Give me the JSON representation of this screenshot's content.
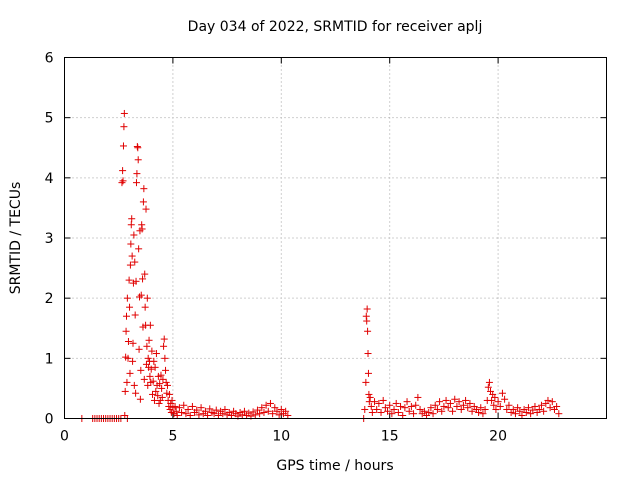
{
  "chart_data": {
    "type": "scatter",
    "title": "Day 034 of 2022, SRMTID for receiver aplj",
    "xlabel": "GPS time / hours",
    "ylabel": "SRMTID / TECUs",
    "xlim": [
      0,
      25
    ],
    "ylim": [
      0,
      6
    ],
    "xticks": [
      0,
      5,
      10,
      15,
      20
    ],
    "yticks": [
      0,
      1,
      2,
      3,
      4,
      5,
      6
    ],
    "grid": true,
    "marker": "+",
    "series_color": "#e00000",
    "series": [
      {
        "name": "SRMTID",
        "points": [
          [
            0.8,
            0.0
          ],
          [
            1.3,
            0.0
          ],
          [
            1.4,
            0.0
          ],
          [
            1.5,
            0.0
          ],
          [
            1.6,
            0.0
          ],
          [
            1.7,
            0.0
          ],
          [
            1.8,
            0.0
          ],
          [
            1.9,
            0.0
          ],
          [
            2.0,
            0.0
          ],
          [
            2.1,
            0.0
          ],
          [
            2.2,
            0.0
          ],
          [
            2.3,
            0.0
          ],
          [
            2.4,
            0.0
          ],
          [
            2.5,
            0.0
          ],
          [
            2.6,
            0.0
          ],
          [
            2.9,
            0.0
          ],
          [
            2.65,
            3.92
          ],
          [
            2.68,
            4.12
          ],
          [
            2.7,
            3.95
          ],
          [
            2.72,
            4.53
          ],
          [
            2.74,
            4.85
          ],
          [
            2.76,
            5.07
          ],
          [
            2.78,
            0.05
          ],
          [
            2.8,
            0.45
          ],
          [
            2.82,
            1.02
          ],
          [
            2.84,
            1.45
          ],
          [
            2.86,
            1.7
          ],
          [
            2.88,
            0.6
          ],
          [
            2.9,
            2.0
          ],
          [
            2.93,
            1.0
          ],
          [
            2.95,
            1.28
          ],
          [
            2.98,
            2.3
          ],
          [
            3.0,
            1.85
          ],
          [
            3.02,
            0.75
          ],
          [
            3.04,
            2.55
          ],
          [
            3.06,
            2.9
          ],
          [
            3.08,
            3.22
          ],
          [
            3.1,
            3.32
          ],
          [
            3.12,
            2.7
          ],
          [
            3.14,
            0.95
          ],
          [
            3.16,
            1.25
          ],
          [
            3.18,
            2.25
          ],
          [
            3.2,
            3.05
          ],
          [
            3.22,
            0.55
          ],
          [
            3.24,
            2.6
          ],
          [
            3.26,
            1.72
          ],
          [
            3.28,
            0.42
          ],
          [
            3.3,
            2.28
          ],
          [
            3.32,
            3.92
          ],
          [
            3.34,
            4.07
          ],
          [
            3.36,
            4.52
          ],
          [
            3.38,
            4.5
          ],
          [
            3.4,
            4.3
          ],
          [
            3.42,
            2.82
          ],
          [
            3.44,
            1.15
          ],
          [
            3.46,
            2.02
          ],
          [
            3.48,
            3.12
          ],
          [
            3.5,
            0.32
          ],
          [
            3.52,
            0.8
          ],
          [
            3.54,
            2.05
          ],
          [
            3.56,
            3.22
          ],
          [
            3.58,
            3.15
          ],
          [
            3.6,
            2.32
          ],
          [
            3.62,
            1.52
          ],
          [
            3.64,
            3.6
          ],
          [
            3.66,
            3.82
          ],
          [
            3.68,
            0.65
          ],
          [
            3.7,
            2.4
          ],
          [
            3.72,
            1.85
          ],
          [
            3.74,
            1.55
          ],
          [
            3.76,
            3.48
          ],
          [
            3.78,
            0.9
          ],
          [
            3.8,
            1.2
          ],
          [
            3.82,
            2.0
          ],
          [
            3.84,
            0.55
          ],
          [
            3.86,
            1.0
          ],
          [
            3.88,
            0.85
          ],
          [
            3.9,
            1.3
          ],
          [
            3.92,
            0.95
          ],
          [
            3.94,
            0.7
          ],
          [
            3.96,
            1.55
          ],
          [
            3.98,
            0.6
          ],
          [
            4.0,
            0.82
          ],
          [
            4.03,
            1.12
          ],
          [
            4.06,
            0.4
          ],
          [
            4.09,
            0.62
          ],
          [
            4.12,
            0.95
          ],
          [
            4.15,
            0.3
          ],
          [
            4.18,
            0.85
          ],
          [
            4.21,
            0.45
          ],
          [
            4.24,
            1.08
          ],
          [
            4.27,
            0.55
          ],
          [
            4.3,
            0.38
          ],
          [
            4.33,
            0.7
          ],
          [
            4.36,
            0.25
          ],
          [
            4.39,
            0.58
          ],
          [
            4.42,
            0.3
          ],
          [
            4.45,
            0.72
          ],
          [
            4.48,
            0.5
          ],
          [
            4.51,
            0.35
          ],
          [
            4.54,
            0.65
          ],
          [
            4.57,
            1.2
          ],
          [
            4.6,
            1.32
          ],
          [
            4.63,
            1.0
          ],
          [
            4.66,
            0.8
          ],
          [
            4.69,
            0.6
          ],
          [
            4.72,
            0.42
          ],
          [
            4.75,
            0.55
          ],
          [
            4.78,
            0.3
          ],
          [
            4.81,
            0.2
          ],
          [
            4.84,
            0.4
          ],
          [
            4.87,
            0.15
          ],
          [
            4.9,
            0.25
          ],
          [
            4.93,
            0.1
          ],
          [
            4.96,
            0.3
          ],
          [
            5.0,
            0.18
          ],
          [
            5.05,
            0.08
          ],
          [
            5.1,
            0.2
          ],
          [
            5.15,
            0.12
          ],
          [
            5.2,
            0.05
          ],
          [
            5.3,
            0.18
          ],
          [
            5.4,
            0.1
          ],
          [
            5.5,
            0.22
          ],
          [
            5.6,
            0.08
          ],
          [
            5.7,
            0.15
          ],
          [
            5.8,
            0.05
          ],
          [
            5.9,
            0.2
          ],
          [
            6.0,
            0.1
          ],
          [
            6.1,
            0.14
          ],
          [
            6.2,
            0.06
          ],
          [
            6.3,
            0.18
          ],
          [
            6.4,
            0.08
          ],
          [
            6.5,
            0.12
          ],
          [
            6.6,
            0.05
          ],
          [
            6.7,
            0.16
          ],
          [
            6.8,
            0.1
          ],
          [
            6.9,
            0.08
          ],
          [
            7.0,
            0.14
          ],
          [
            7.1,
            0.05
          ],
          [
            7.2,
            0.12
          ],
          [
            7.3,
            0.08
          ],
          [
            7.4,
            0.15
          ],
          [
            7.5,
            0.06
          ],
          [
            7.6,
            0.1
          ],
          [
            7.7,
            0.05
          ],
          [
            7.8,
            0.12
          ],
          [
            7.9,
            0.08
          ],
          [
            8.0,
            0.04
          ],
          [
            8.1,
            0.1
          ],
          [
            8.2,
            0.06
          ],
          [
            8.3,
            0.12
          ],
          [
            8.4,
            0.05
          ],
          [
            8.5,
            0.09
          ],
          [
            8.6,
            0.04
          ],
          [
            8.7,
            0.11
          ],
          [
            8.8,
            0.06
          ],
          [
            8.9,
            0.14
          ],
          [
            9.0,
            0.08
          ],
          [
            9.1,
            0.18
          ],
          [
            9.2,
            0.1
          ],
          [
            9.3,
            0.22
          ],
          [
            9.4,
            0.12
          ],
          [
            9.5,
            0.25
          ],
          [
            9.6,
            0.08
          ],
          [
            9.7,
            0.18
          ],
          [
            9.8,
            0.12
          ],
          [
            9.9,
            0.06
          ],
          [
            10.0,
            0.15
          ],
          [
            10.1,
            0.08
          ],
          [
            10.2,
            0.12
          ],
          [
            10.3,
            0.05
          ],
          [
            13.8,
            0.0
          ],
          [
            13.85,
            0.15
          ],
          [
            13.9,
            0.6
          ],
          [
            13.92,
            1.7
          ],
          [
            13.94,
            1.62
          ],
          [
            13.96,
            1.82
          ],
          [
            13.98,
            1.45
          ],
          [
            14.0,
            1.08
          ],
          [
            14.02,
            0.75
          ],
          [
            14.04,
            0.4
          ],
          [
            14.06,
            0.28
          ],
          [
            14.1,
            0.35
          ],
          [
            14.15,
            0.2
          ],
          [
            14.2,
            0.1
          ],
          [
            14.3,
            0.28
          ],
          [
            14.4,
            0.15
          ],
          [
            14.5,
            0.25
          ],
          [
            14.6,
            0.1
          ],
          [
            14.7,
            0.3
          ],
          [
            14.8,
            0.18
          ],
          [
            14.9,
            0.12
          ],
          [
            15.0,
            0.22
          ],
          [
            15.1,
            0.08
          ],
          [
            15.2,
            0.15
          ],
          [
            15.3,
            0.25
          ],
          [
            15.4,
            0.1
          ],
          [
            15.5,
            0.2
          ],
          [
            15.6,
            0.05
          ],
          [
            15.7,
            0.18
          ],
          [
            15.8,
            0.28
          ],
          [
            15.9,
            0.12
          ],
          [
            16.0,
            0.2
          ],
          [
            16.1,
            0.08
          ],
          [
            16.2,
            0.22
          ],
          [
            16.3,
            0.35
          ],
          [
            16.4,
            0.15
          ],
          [
            16.5,
            0.08
          ],
          [
            16.6,
            0.12
          ],
          [
            16.7,
            0.05
          ],
          [
            16.8,
            0.1
          ],
          [
            16.9,
            0.18
          ],
          [
            17.0,
            0.08
          ],
          [
            17.1,
            0.22
          ],
          [
            17.2,
            0.15
          ],
          [
            17.3,
            0.28
          ],
          [
            17.4,
            0.12
          ],
          [
            17.5,
            0.2
          ],
          [
            17.6,
            0.3
          ],
          [
            17.7,
            0.18
          ],
          [
            17.8,
            0.25
          ],
          [
            17.9,
            0.12
          ],
          [
            18.0,
            0.32
          ],
          [
            18.1,
            0.2
          ],
          [
            18.2,
            0.28
          ],
          [
            18.3,
            0.15
          ],
          [
            18.4,
            0.22
          ],
          [
            18.5,
            0.3
          ],
          [
            18.6,
            0.18
          ],
          [
            18.7,
            0.25
          ],
          [
            18.8,
            0.12
          ],
          [
            18.9,
            0.2
          ],
          [
            19.0,
            0.15
          ],
          [
            19.1,
            0.1
          ],
          [
            19.2,
            0.18
          ],
          [
            19.3,
            0.08
          ],
          [
            19.4,
            0.15
          ],
          [
            19.5,
            0.3
          ],
          [
            19.55,
            0.52
          ],
          [
            19.6,
            0.6
          ],
          [
            19.65,
            0.45
          ],
          [
            19.7,
            0.3
          ],
          [
            19.75,
            0.4
          ],
          [
            19.8,
            0.22
          ],
          [
            19.85,
            0.35
          ],
          [
            19.9,
            0.15
          ],
          [
            20.0,
            0.28
          ],
          [
            20.1,
            0.2
          ],
          [
            20.2,
            0.42
          ],
          [
            20.3,
            0.32
          ],
          [
            20.4,
            0.15
          ],
          [
            20.5,
            0.22
          ],
          [
            20.6,
            0.1
          ],
          [
            20.7,
            0.15
          ],
          [
            20.8,
            0.08
          ],
          [
            20.9,
            0.18
          ],
          [
            21.0,
            0.12
          ],
          [
            21.1,
            0.05
          ],
          [
            21.2,
            0.15
          ],
          [
            21.3,
            0.1
          ],
          [
            21.4,
            0.18
          ],
          [
            21.5,
            0.08
          ],
          [
            21.6,
            0.14
          ],
          [
            21.7,
            0.2
          ],
          [
            21.8,
            0.1
          ],
          [
            21.9,
            0.15
          ],
          [
            22.0,
            0.22
          ],
          [
            22.1,
            0.12
          ],
          [
            22.2,
            0.25
          ],
          [
            22.3,
            0.3
          ],
          [
            22.4,
            0.18
          ],
          [
            22.5,
            0.28
          ],
          [
            22.6,
            0.15
          ],
          [
            22.7,
            0.2
          ],
          [
            22.8,
            0.08
          ]
        ]
      }
    ]
  }
}
